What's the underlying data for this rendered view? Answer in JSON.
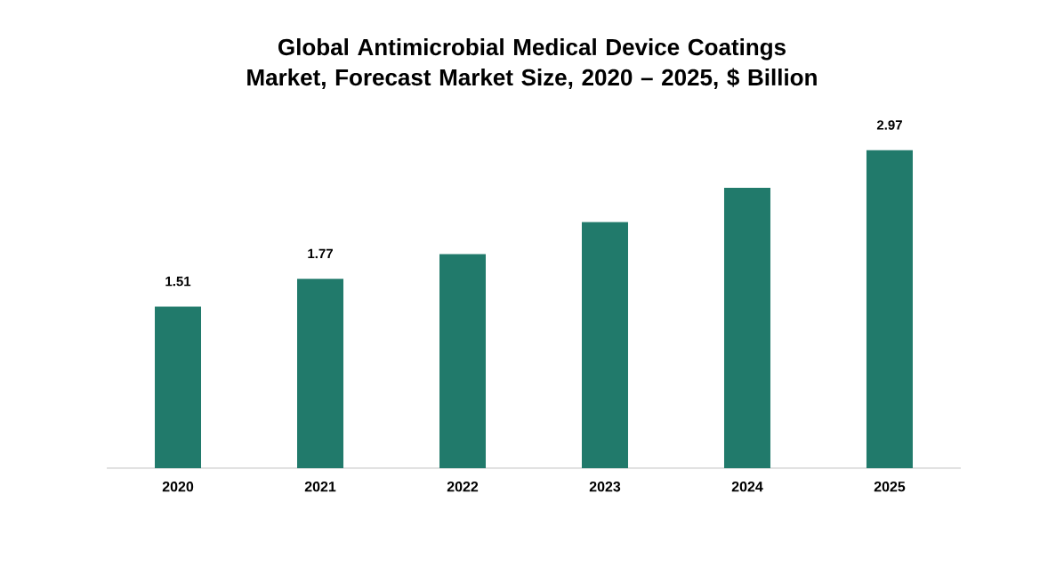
{
  "chart_data": {
    "type": "bar",
    "title": "Global Antimicrobial Medical Device Coatings Market, Forecast Market Size, 2020 – 2025, $ Billion",
    "categories": [
      "2020",
      "2021",
      "2022",
      "2023",
      "2024",
      "2025"
    ],
    "values": [
      1.51,
      1.77,
      2.0,
      2.3,
      2.62,
      2.97
    ],
    "value_labels": [
      "1.51",
      "1.77",
      null,
      null,
      null,
      "2.97"
    ],
    "color": "#217a6b"
  }
}
